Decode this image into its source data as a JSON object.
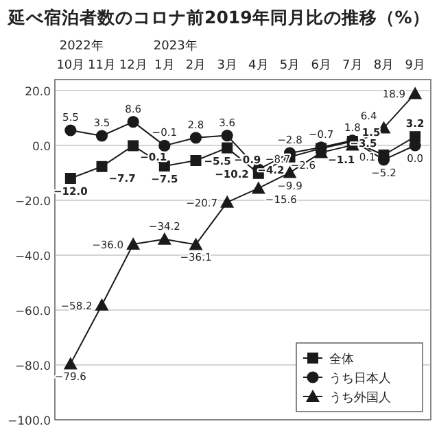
{
  "chart_data": {
    "type": "line",
    "title": "延べ宿泊者数のコロナ前2019年同月比の推移（%）",
    "categories": [
      "2022年 10月",
      "11月",
      "12月",
      "2023年 1月",
      "2月",
      "3月",
      "4月",
      "5月",
      "6月",
      "7月",
      "8月",
      "9月"
    ],
    "series": [
      {
        "name": "全体",
        "color": "#1a1a1a",
        "marker": "square",
        "values": [
          -12.0,
          -7.7,
          -0.1,
          -7.5,
          -5.5,
          -0.9,
          -10.2,
          -4.2,
          -1.1,
          1.5,
          -3.5,
          3.2
        ],
        "value_labels": [
          "−12.0",
          "−7.7",
          "−0.1",
          "−7.5",
          "−5.5",
          "−0.9",
          "−10.2",
          "−4.2",
          "−1.1",
          "1.5",
          "−3.5",
          "3.2"
        ]
      },
      {
        "name": "うち日本人",
        "color": "#1a1a1a",
        "marker": "circle",
        "values": [
          5.5,
          3.5,
          8.6,
          -0.1,
          2.8,
          3.6,
          -8.7,
          -2.8,
          -0.7,
          1.8,
          -5.2,
          0.0
        ],
        "value_labels": [
          "5.5",
          "3.5",
          "8.6",
          "−0.1",
          "2.8",
          "3.6",
          "−8.7",
          "−2.8",
          "−0.7",
          "1.8",
          "−5.2",
          "0.0"
        ]
      },
      {
        "name": "うち外国人",
        "color": "#1a1a1a",
        "marker": "triangle",
        "values": [
          -79.6,
          -58.2,
          -36.0,
          -34.2,
          -36.1,
          -20.7,
          -15.6,
          -9.9,
          -2.6,
          0.1,
          6.4,
          18.9
        ],
        "value_labels": [
          "−79.6",
          "−58.2",
          "−36.0",
          "−34.2",
          "−36.1",
          "−20.7",
          "−15.6",
          "−9.9",
          "−2.6",
          "0.1",
          "6.4",
          "18.9"
        ]
      }
    ],
    "ylim": [
      -100,
      24
    ],
    "yticks": [
      {
        "value": 20,
        "label": "20.0"
      },
      {
        "value": 0,
        "label": "0.0"
      },
      {
        "value": -20,
        "label": "−20.0"
      },
      {
        "value": -40,
        "label": "−40.0"
      },
      {
        "value": -60,
        "label": "−60.0"
      },
      {
        "value": -80,
        "label": "−80.0"
      },
      {
        "value": -100,
        "label": "−100.0"
      }
    ],
    "grid": "y",
    "legend": "bottom right"
  }
}
